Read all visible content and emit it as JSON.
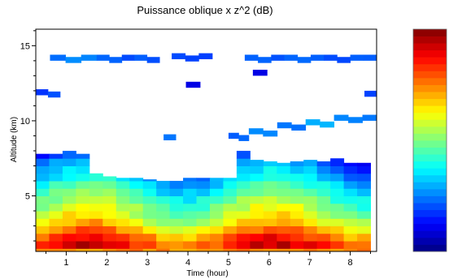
{
  "chart_data": {
    "type": "heatmap",
    "title": "Puissance oblique x z^2 (dB)",
    "xlabel": "Time (hour)",
    "ylabel": "Altitude (km)",
    "xlim": [
      0.25,
      8.65
    ],
    "ylim": [
      1.3,
      16.1
    ],
    "x_ticks": [
      1,
      2,
      3,
      4,
      5,
      6,
      7,
      8
    ],
    "x_minor_ticks": [
      0.5,
      1.5,
      2.5,
      3.5,
      4.5,
      5.5,
      6.5,
      7.5,
      8.5
    ],
    "y_ticks": [
      5,
      10,
      15
    ],
    "y_tick_labels": [
      "5",
      "10",
      "15"
    ],
    "grid": false,
    "colormap": "jet",
    "colormap_stops": [
      "#00007f",
      "#0000ff",
      "#007fff",
      "#00ffff",
      "#7fff7f",
      "#ffff00",
      "#ff7f00",
      "#ff0000",
      "#7f0000"
    ],
    "colorbar_levels": 32,
    "time_step_hours": 0.33,
    "altitude_rows_km": [
      1.5,
      2.0,
      2.5,
      3.0,
      3.5,
      4.0,
      4.5,
      5.0,
      5.5,
      6.0,
      6.5,
      7.0,
      7.5
    ],
    "relative_power_by_altitude": [
      0.84,
      0.78,
      0.7,
      0.62,
      0.56,
      0.52,
      0.47,
      0.42,
      0.37,
      0.32,
      0.27,
      0.22,
      0.16
    ],
    "cloud_top_km_by_column": [
      7.8,
      7.8,
      8.2,
      7.8,
      6.5,
      6.3,
      6.2,
      6.2,
      6.1,
      6.0,
      6.0,
      6.2,
      6.2,
      6.2,
      6.2,
      8.1,
      7.4,
      7.3,
      7.2,
      7.3,
      7.4,
      7.3,
      7.5,
      7.2,
      7.2
    ],
    "upper_layers": [
      {
        "t0": 0.6,
        "t1": 1.75,
        "alt": 14.2,
        "level": 0.24
      },
      {
        "t0": 1.75,
        "t1": 3.3,
        "alt": 14.2,
        "level": 0.22
      },
      {
        "t0": 3.6,
        "t1": 4.6,
        "alt": 14.3,
        "level": 0.2
      },
      {
        "t0": 5.4,
        "t1": 8.65,
        "alt": 14.2,
        "level": 0.22
      },
      {
        "t0": 0.25,
        "t1": 0.85,
        "alt": 11.9,
        "level": 0.2
      },
      {
        "t0": 3.95,
        "t1": 4.3,
        "alt": 12.4,
        "level": 0.12
      },
      {
        "t0": 5.6,
        "t1": 5.95,
        "alt": 13.2,
        "level": 0.12
      },
      {
        "t0": 8.35,
        "t1": 8.65,
        "alt": 11.8,
        "level": 0.2
      },
      {
        "t0": 5.0,
        "t1": 5.5,
        "alt": 9.0,
        "level": 0.22
      },
      {
        "t0": 5.5,
        "t1": 6.2,
        "alt": 9.3,
        "level": 0.24
      },
      {
        "t0": 6.2,
        "t1": 6.9,
        "alt": 9.7,
        "level": 0.26
      },
      {
        "t0": 6.9,
        "t1": 7.6,
        "alt": 9.9,
        "level": 0.28
      },
      {
        "t0": 7.6,
        "t1": 8.65,
        "alt": 10.2,
        "level": 0.24
      },
      {
        "t0": 3.4,
        "t1": 3.7,
        "alt": 8.9,
        "level": 0.22
      }
    ]
  }
}
